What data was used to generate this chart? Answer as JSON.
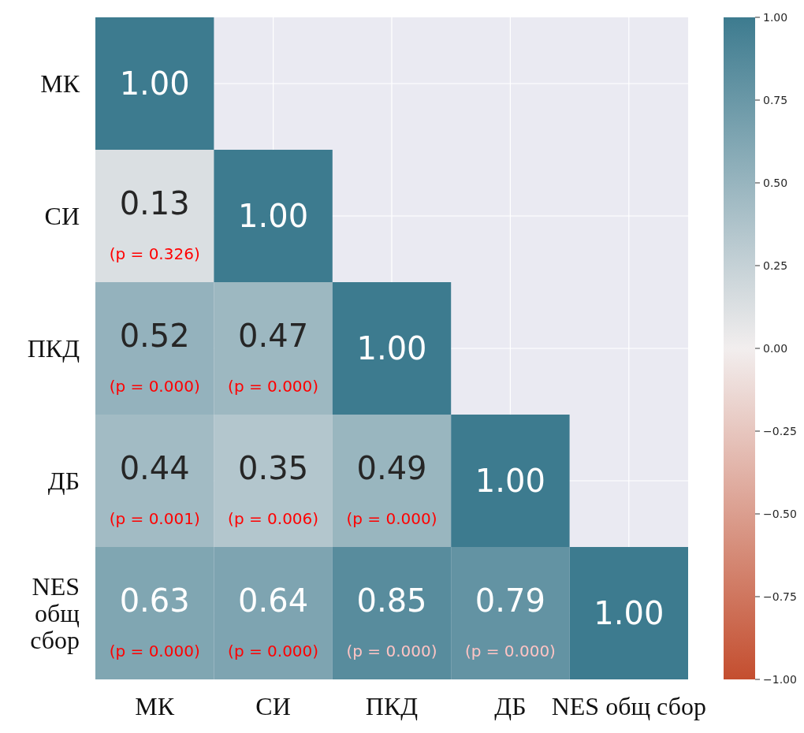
{
  "chart_data": {
    "type": "heatmap",
    "categories": [
      "МК",
      "СИ",
      "ПКД",
      "ДБ",
      "NES общ сбор"
    ],
    "y_categories": [
      "МК",
      "СИ",
      "ПКД",
      "ДБ",
      "NES общ сбор"
    ],
    "cells": [
      [
        1.0,
        null,
        null,
        null,
        null
      ],
      [
        0.13,
        1.0,
        null,
        null,
        null
      ],
      [
        0.52,
        0.47,
        1.0,
        null,
        null
      ],
      [
        0.44,
        0.35,
        0.49,
        1.0,
        null
      ],
      [
        0.63,
        0.64,
        0.85,
        0.79,
        1.0
      ]
    ],
    "cell_labels": [
      [
        "1.00",
        null,
        null,
        null,
        null
      ],
      [
        "0.13\n(p = 0.326)",
        "1.00",
        null,
        null,
        null
      ],
      [
        "0.52\n(p = 0.000)",
        "0.47\n(p = 0.000)",
        "1.00",
        null,
        null
      ],
      [
        "0.44\n(p = 0.001)",
        "0.35\n(p = 0.006)",
        "0.49\n(p = 0.000)",
        "1.00",
        null
      ],
      [
        "0.63\n(p = 0.000)",
        "0.64\n(p = 0.000)",
        "0.85\n(p = 0.000)",
        "0.79\n(p = 0.000)",
        "1.00"
      ]
    ],
    "clim": [
      -1,
      1
    ],
    "cticks": [
      {
        "value": -1,
        "label": "−1.00"
      },
      {
        "value": -0.75,
        "label": "−0.75"
      },
      {
        "value": -0.5,
        "label": "−0.50"
      },
      {
        "value": -0.25,
        "label": "−0.25"
      },
      {
        "value": 0,
        "label": "0.00"
      },
      {
        "value": 0.25,
        "label": "0.25"
      },
      {
        "value": 0.5,
        "label": "0.50"
      },
      {
        "value": 0.75,
        "label": "0.75"
      },
      {
        "value": 1,
        "label": "1.00"
      }
    ],
    "grid": true
  }
}
